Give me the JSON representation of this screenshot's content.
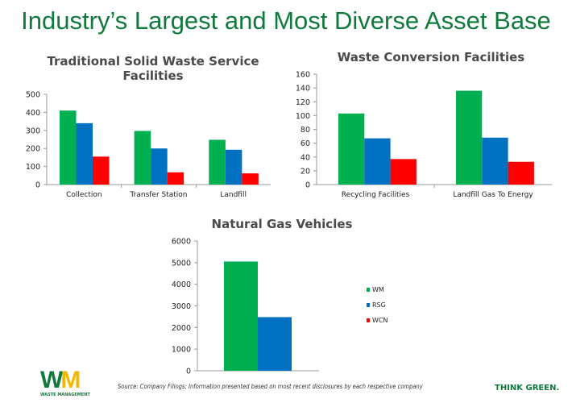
{
  "title": "Industry’s Largest and Most Diverse Asset Base",
  "colors": {
    "WM": "#00b050",
    "RSG": "#0070c0",
    "WCN": "#ff0000",
    "title": "#0f7a3c"
  },
  "chart_data": [
    {
      "type": "bar",
      "title": "Traditional Solid Waste Service Facilities",
      "categories": [
        "Collection",
        "Transfer  Station",
        "Landfill"
      ],
      "ylim": [
        0,
        500
      ],
      "yticks": [
        0,
        100,
        200,
        300,
        400,
        500
      ],
      "series": [
        {
          "key": "WM",
          "values": [
            410,
            297,
            248
          ]
        },
        {
          "key": "RSG",
          "values": [
            340,
            200,
            193
          ]
        },
        {
          "key": "WCN",
          "values": [
            155,
            68,
            62
          ]
        }
      ],
      "grid": false
    },
    {
      "type": "bar",
      "title": "Waste Conversion Facilities",
      "categories": [
        "Recycling Facilities",
        "Landfill Gas To Energy"
      ],
      "ylim": [
        0,
        160
      ],
      "yticks": [
        0,
        20,
        40,
        60,
        80,
        100,
        120,
        140,
        160
      ],
      "series": [
        {
          "key": "WM",
          "values": [
            103,
            136
          ]
        },
        {
          "key": "RSG",
          "values": [
            67,
            68
          ]
        },
        {
          "key": "WCN",
          "values": [
            37,
            33
          ]
        }
      ],
      "grid": false
    },
    {
      "type": "bar",
      "title": "Natural Gas Vehicles",
      "categories": [
        ""
      ],
      "ylim": [
        0,
        6000
      ],
      "yticks": [
        0,
        1000,
        2000,
        3000,
        4000,
        5000,
        6000
      ],
      "series": [
        {
          "name": "WM",
          "key": "WM",
          "values": [
            5050
          ]
        },
        {
          "name": "RSG",
          "key": "RSG",
          "values": [
            2480
          ]
        },
        {
          "name": "WCN",
          "key": "WCN",
          "values": [
            0
          ]
        }
      ],
      "legend": "right",
      "grid": false
    }
  ],
  "footer": {
    "logo_text": "WM",
    "logo_subtext": "WASTE MANAGEMENT",
    "source": "Source: Company Filings; Information presented based on most recent disclosures by each respective company",
    "tagline": "THINK GREEN."
  }
}
